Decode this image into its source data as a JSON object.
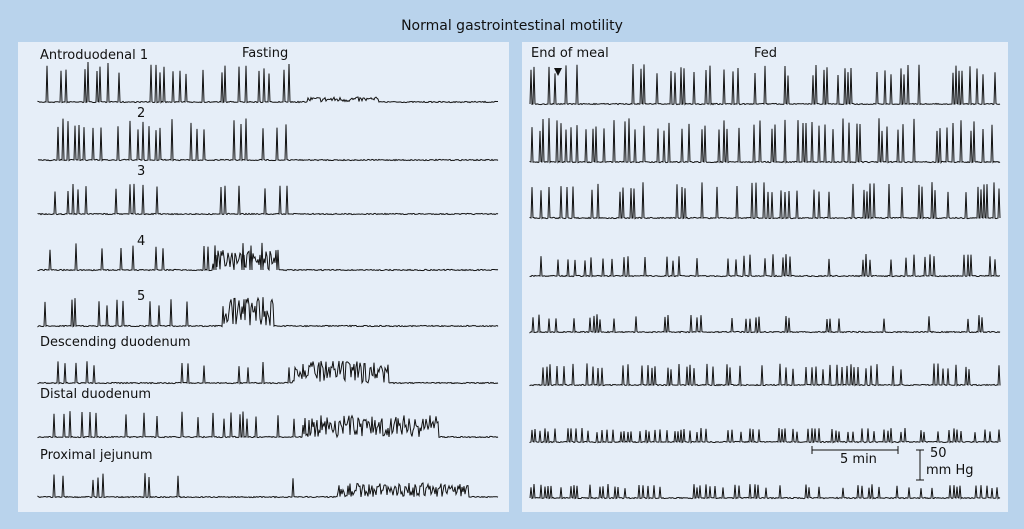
{
  "title": "Normal gastrointestinal motility",
  "left_panel": {
    "header": "Fasting",
    "trace_labels": [
      "Antroduodenal 1",
      "2",
      "3",
      "4",
      "5",
      "Descending duodenum",
      "Distal duodenum",
      "Proximal jejunum"
    ]
  },
  "right_panel": {
    "header": "Fed",
    "meal_marker": "End of meal",
    "scale_time": "5 min",
    "scale_pressure_value": "50",
    "scale_pressure_unit": "mm Hg"
  },
  "colors": {
    "background": "#b9d3ec",
    "panel": "#e6eef8",
    "trace": "#111111"
  }
}
